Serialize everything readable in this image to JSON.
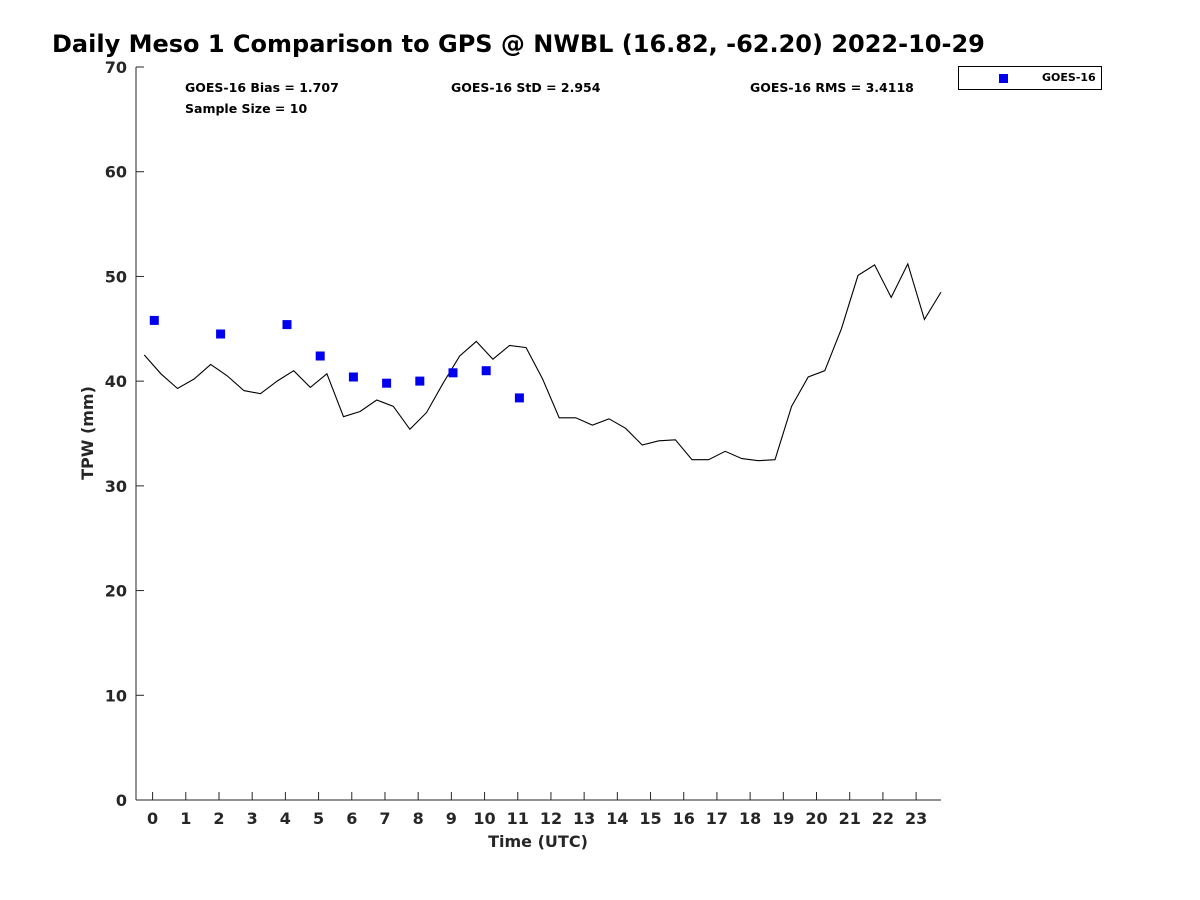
{
  "chart_data": {
    "type": "line",
    "title": "Daily Meso 1 Comparison to GPS @ NWBL (16.82, -62.20) 2022-10-29",
    "xlabel": "Time (UTC)",
    "ylabel": "TPW (mm)",
    "xlim": [
      -0.5,
      23.75
    ],
    "ylim": [
      0,
      70
    ],
    "xticks": [
      0,
      1,
      2,
      3,
      4,
      5,
      6,
      7,
      8,
      9,
      10,
      11,
      12,
      13,
      14,
      15,
      16,
      17,
      18,
      19,
      20,
      21,
      22,
      23
    ],
    "xtick_labels": [
      "0",
      "1",
      "2",
      "3",
      "4",
      "5",
      "6",
      "7",
      "8",
      "9",
      "10",
      "11",
      "12",
      "13",
      "14",
      "15",
      "16",
      "17",
      "18",
      "19",
      "20",
      "21",
      "22",
      "23"
    ],
    "yticks": [
      0,
      10,
      20,
      30,
      40,
      50,
      60,
      70
    ],
    "ytick_labels": [
      "0",
      "10",
      "20",
      "30",
      "40",
      "50",
      "60",
      "70"
    ],
    "grid": false,
    "legend_position": "outside-top-right",
    "series": [
      {
        "kind": "line",
        "color": "#000000",
        "x": [
          -0.25,
          0.25,
          0.75,
          1.25,
          1.75,
          2.25,
          2.75,
          3.25,
          3.75,
          4.25,
          4.75,
          5.25,
          5.75,
          6.25,
          6.75,
          7.25,
          7.75,
          8.25,
          8.75,
          9.25,
          9.75,
          10.25,
          10.75,
          11.25,
          11.75,
          12.25,
          12.75,
          13.25,
          13.75,
          14.25,
          14.75,
          15.25,
          15.75,
          16.25,
          16.75,
          17.25,
          17.75,
          18.25,
          18.75,
          19.25,
          19.75,
          20.25,
          20.75,
          21.25,
          21.75,
          22.25,
          22.75,
          23.25,
          23.75
        ],
        "y": [
          42.5,
          40.7,
          39.3,
          40.2,
          41.6,
          40.5,
          39.1,
          38.8,
          40.0,
          41.0,
          39.4,
          40.7,
          36.6,
          37.1,
          38.2,
          37.6,
          35.4,
          37.0,
          39.8,
          42.4,
          43.8,
          42.1,
          43.4,
          43.2,
          40.2,
          36.5,
          36.5,
          35.8,
          36.4,
          35.5,
          33.9,
          34.3,
          34.4,
          32.5,
          32.5,
          33.3,
          32.6,
          32.4,
          32.5,
          37.6,
          40.4,
          41.0,
          45.0,
          50.1,
          51.1,
          48.0,
          51.2,
          45.9,
          48.5
        ]
      },
      {
        "name": "GOES-16",
        "kind": "scatter",
        "marker": "square",
        "color": "#0000ee",
        "x": [
          0.05,
          2.05,
          4.05,
          5.05,
          6.05,
          7.05,
          8.05,
          9.05,
          10.05,
          11.05
        ],
        "y": [
          45.8,
          44.5,
          45.4,
          42.4,
          40.4,
          39.8,
          40.0,
          40.8,
          41.0,
          38.4
        ]
      }
    ],
    "annotations": {
      "bias": "GOES-16 Bias = 1.707",
      "std": "GOES-16 StD = 2.954",
      "rms": "GOES-16 RMS = 3.4118",
      "sample_size": "Sample Size = 10"
    }
  }
}
